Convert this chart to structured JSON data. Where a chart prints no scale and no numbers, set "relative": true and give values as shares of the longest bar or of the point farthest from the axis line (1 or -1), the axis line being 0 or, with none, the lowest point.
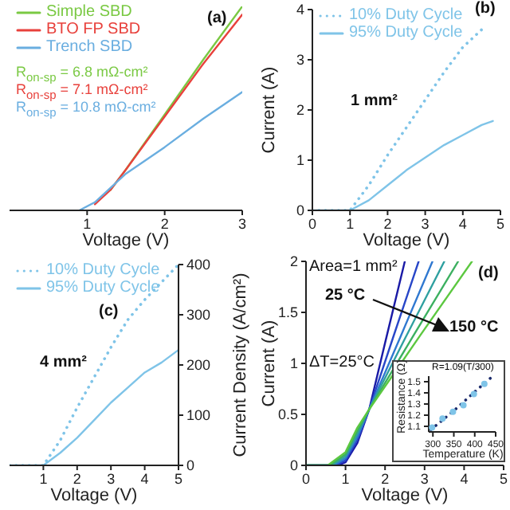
{
  "chart_data": [
    {
      "type": "line",
      "relative": true,
      "xlabel": "Voltage (V)",
      "xlim": [
        0,
        3
      ],
      "xticks": [
        1,
        2,
        3
      ],
      "legend": "top left",
      "series": [
        {
          "name": "Simple SBD",
          "color": "#7ac943",
          "x": [
            1.3,
            1.5,
            2,
            2.5,
            3
          ],
          "values": [
            0.1,
            0.2,
            0.47,
            0.74,
            1.0
          ]
        },
        {
          "name": "BTO FP SBD",
          "color": "#e8413c",
          "x": [
            1.1,
            1.3,
            1.5,
            2,
            2.5,
            3
          ],
          "values": [
            0.03,
            0.1,
            0.2,
            0.46,
            0.72,
            0.96
          ]
        },
        {
          "name": "Trench SBD",
          "color": "#6aaee0",
          "x": [
            0.9,
            1.1,
            1.3,
            1.5,
            2,
            2.5,
            3
          ],
          "values": [
            0,
            0.04,
            0.11,
            0.18,
            0.31,
            0.45,
            0.58
          ]
        }
      ],
      "annotations": [
        "R$_{on-sp}$ = 6.8 mΩ-cm²",
        "R$_{on-sp}$ = 7.1 mΩ-cm²",
        "R$_{on-sp}$ = 10.8 mΩ-cm²",
        "(a)"
      ]
    },
    {
      "type": "line",
      "xlabel": "Voltage (V)",
      "ylabel": "Current (A)",
      "xlim": [
        0,
        5
      ],
      "xticks": [
        0,
        1,
        2,
        3,
        4,
        5
      ],
      "ylim": [
        0,
        4
      ],
      "yticks": [
        0,
        1,
        2,
        3,
        4
      ],
      "legend": "top left",
      "series": [
        {
          "name": "10% Duty Cycle",
          "color": "#7fc4e8",
          "line_style": "dotted",
          "x": [
            0,
            1,
            1.5,
            2,
            2.5,
            3,
            3.5,
            4,
            4.5
          ],
          "values": [
            0,
            0,
            0.5,
            1.1,
            1.65,
            2.2,
            2.75,
            3.25,
            3.6
          ]
        },
        {
          "name": "95% Duty Cycle",
          "color": "#7fc4e8",
          "line_style": "solid",
          "x": [
            0,
            1,
            1.5,
            2,
            2.5,
            3,
            3.5,
            4,
            4.5,
            4.8
          ],
          "values": [
            0,
            0,
            0.2,
            0.5,
            0.8,
            1.05,
            1.3,
            1.5,
            1.7,
            1.78
          ]
        }
      ],
      "annotations": [
        "1 mm²",
        "(b)"
      ]
    },
    {
      "type": "line",
      "xlabel": "Voltage (V)",
      "y2label": "Current Density (A/cm²)",
      "xlim": [
        0,
        5
      ],
      "xticks": [
        1,
        2,
        3,
        4,
        5
      ],
      "y2lim": [
        0,
        400
      ],
      "y2ticks": [
        0,
        100,
        200,
        300,
        400
      ],
      "legend": "top left",
      "series": [
        {
          "name": "10% Duty Cycle",
          "color": "#7fc4e8",
          "line_style": "dotted",
          "axis": "y2",
          "x": [
            0,
            1,
            1.5,
            2,
            2.5,
            3,
            3.5,
            4,
            4.5,
            5
          ],
          "values": [
            0,
            0,
            50,
            115,
            175,
            235,
            290,
            330,
            365,
            400
          ]
        },
        {
          "name": "95% Duty Cycle",
          "color": "#7fc4e8",
          "line_style": "solid",
          "axis": "y2",
          "x": [
            0,
            1,
            1.5,
            2,
            2.5,
            3,
            3.5,
            4,
            4.5,
            5
          ],
          "values": [
            0,
            0,
            25,
            55,
            90,
            125,
            155,
            185,
            205,
            230
          ]
        }
      ],
      "annotations": [
        "4 mm²",
        "(c)"
      ]
    },
    {
      "type": "line",
      "xlabel": "Voltage (V)",
      "ylabel": "Current (A)",
      "xlim": [
        0,
        5
      ],
      "xticks": [
        0,
        1,
        2,
        3,
        4,
        5
      ],
      "ylim": [
        0,
        2
      ],
      "yticks": [
        0,
        0.5,
        1,
        1.5,
        2
      ],
      "series": [
        {
          "color": "#1a1aa6",
          "x": [
            0,
            0.8,
            1.0,
            1.3,
            1.6,
            2.0,
            2.5
          ],
          "values": [
            0,
            0,
            0.03,
            0.22,
            0.55,
            1.2,
            2.0
          ]
        },
        {
          "color": "#2846c8",
          "x": [
            0,
            0.75,
            1.0,
            1.3,
            1.6,
            2.2,
            2.85
          ],
          "values": [
            0,
            0,
            0.05,
            0.25,
            0.55,
            1.25,
            2.0
          ]
        },
        {
          "color": "#2f78d0",
          "x": [
            0,
            0.7,
            1.0,
            1.3,
            1.6,
            2.4,
            3.2
          ],
          "values": [
            0,
            0,
            0.07,
            0.28,
            0.55,
            1.27,
            2.0
          ]
        },
        {
          "color": "#2fa0a0",
          "x": [
            0,
            0.65,
            1.0,
            1.3,
            1.6,
            2.5,
            3.5
          ],
          "values": [
            0,
            0,
            0.09,
            0.31,
            0.55,
            1.24,
            2.0
          ]
        },
        {
          "color": "#3cb060",
          "x": [
            0,
            0.6,
            1.0,
            1.3,
            1.6,
            2.7,
            3.85
          ],
          "values": [
            0,
            0,
            0.11,
            0.34,
            0.55,
            1.26,
            2.0
          ]
        },
        {
          "color": "#5cc840",
          "x": [
            0,
            0.55,
            1.0,
            1.3,
            1.6,
            2.9,
            4.2
          ],
          "values": [
            0,
            0,
            0.13,
            0.37,
            0.55,
            1.28,
            2.0
          ]
        }
      ],
      "annotations": [
        "Area=1 mm²",
        "25 °C",
        "150 °C",
        "ΔT=25°C",
        "(d)"
      ]
    },
    {
      "type": "scatter",
      "title": "R=1.09(T/300)",
      "xlabel": "Temperature (K)",
      "ylabel": "Resistance (Ω)",
      "xlim": [
        290,
        450
      ],
      "xticks": [
        300,
        350,
        400,
        450
      ],
      "ylim": [
        1.05,
        1.55
      ],
      "yticks": [
        1.1,
        1.2,
        1.3,
        1.4,
        1.5
      ],
      "series": [
        {
          "color": "#7fc4e8",
          "marker": "circle",
          "x": [
            298,
            323,
            348,
            373,
            398,
            423
          ],
          "values": [
            1.09,
            1.17,
            1.23,
            1.29,
            1.39,
            1.48
          ]
        },
        {
          "type": "line",
          "color": "#1a2a6c",
          "line_style": "dotted",
          "marker": "none",
          "x": [
            295,
            350,
            400,
            440
          ],
          "values": [
            1.07,
            1.24,
            1.41,
            1.54
          ]
        }
      ]
    }
  ]
}
